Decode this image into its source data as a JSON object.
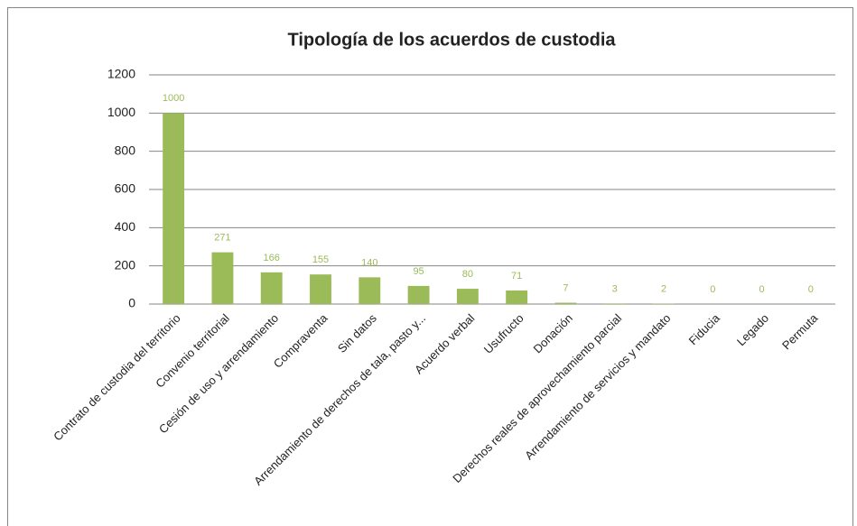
{
  "chart_data": {
    "type": "bar",
    "title": "Tipología de los acuerdos de custodia",
    "categories": [
      "Contrato de custodia del territorio",
      "Convenio territorial",
      "Cesión de uso y arrendamiento",
      "Compraventa",
      "Sin datos",
      "Arrendamiento de derechos de tala, pasto y...",
      "Acuerdo verbal",
      "Usufructo",
      "Donación",
      "Derechos reales de aprovechamiento parcial",
      "Arrendamiento de servicios y mandato",
      "Fiducia",
      "Legado",
      "Permuta"
    ],
    "values": [
      1000,
      271,
      166,
      155,
      140,
      95,
      80,
      71,
      7,
      3,
      2,
      0,
      0,
      0
    ],
    "color": "#9bbb59",
    "ylim": [
      0,
      1200
    ],
    "yticks": [
      0,
      200,
      400,
      600,
      800,
      1000,
      1200
    ],
    "grid": true
  }
}
